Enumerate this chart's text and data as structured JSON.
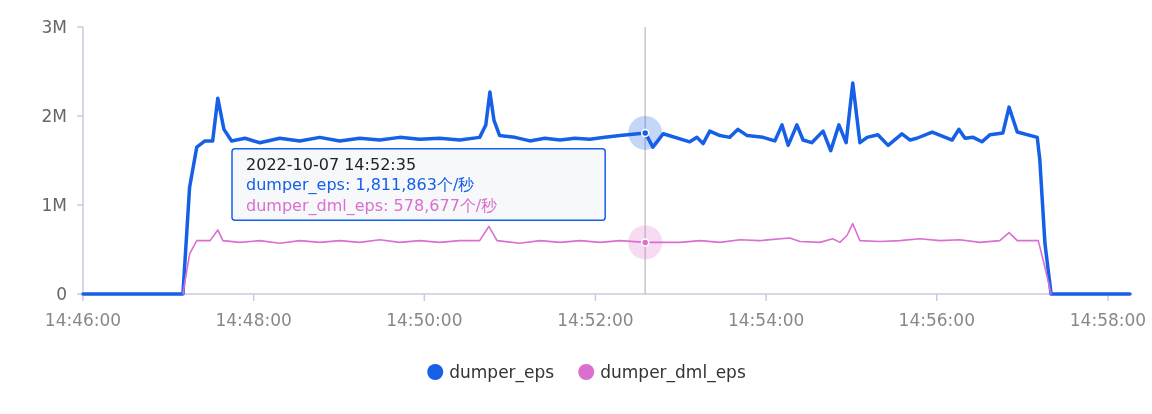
{
  "chart_data": {
    "type": "line",
    "xlim": [
      14.7667,
      14.971
    ],
    "xticks": [
      {
        "value": 14.7667,
        "label": "14:46:00"
      },
      {
        "value": 14.8,
        "label": "14:48:00"
      },
      {
        "value": 14.8333,
        "label": "14:50:00"
      },
      {
        "value": 14.8667,
        "label": "14:52:00"
      },
      {
        "value": 14.9,
        "label": "14:54:00"
      },
      {
        "value": 14.9333,
        "label": "14:56:00"
      },
      {
        "value": 14.9667,
        "label": "14:58:00"
      }
    ],
    "ylim": [
      0,
      3000000
    ],
    "yticks": [
      {
        "value": 0,
        "label": "0"
      },
      {
        "value": 1000000,
        "label": "1M"
      },
      {
        "value": 2000000,
        "label": "2M"
      },
      {
        "value": 3000000,
        "label": "3M"
      }
    ],
    "grid": false,
    "legend": "bottom",
    "marker": "none",
    "line_style": "solid",
    "series": [
      {
        "name": "dumper_eps",
        "color": "#1660e8",
        "x": [
          14.7667,
          14.7862,
          14.7875,
          14.7889,
          14.7905,
          14.792,
          14.793,
          14.7942,
          14.7957,
          14.7983,
          14.8012,
          14.8051,
          14.809,
          14.8129,
          14.8168,
          14.8207,
          14.8246,
          14.8285,
          14.8324,
          14.8363,
          14.8402,
          14.8441,
          14.8453,
          14.8461,
          14.8469,
          14.848,
          14.851,
          14.8539,
          14.8568,
          14.8598,
          14.8627,
          14.8656,
          14.8685,
          14.8715,
          14.8764,
          14.8779,
          14.8799,
          14.8851,
          14.8865,
          14.8877,
          14.889,
          14.891,
          14.8929,
          14.8945,
          14.8963,
          14.8994,
          14.9017,
          14.9031,
          14.9043,
          14.906,
          14.9072,
          14.9089,
          14.9111,
          14.9126,
          14.9142,
          14.9156,
          14.9169,
          14.9183,
          14.9197,
          14.9218,
          14.9238,
          14.9265,
          14.9281,
          14.9294,
          14.9324,
          14.9363,
          14.9376,
          14.9388,
          14.9404,
          14.9421,
          14.9437,
          14.9462,
          14.9474,
          14.949,
          14.9529,
          14.9534,
          14.9544,
          14.9556,
          14.971
        ],
        "values": [
          0,
          0,
          1200000,
          1650000,
          1720000,
          1720000,
          2200000,
          1850000,
          1720000,
          1750000,
          1700000,
          1750000,
          1720000,
          1760000,
          1720000,
          1750000,
          1730000,
          1760000,
          1740000,
          1750000,
          1730000,
          1760000,
          1900000,
          2270000,
          1950000,
          1780000,
          1760000,
          1720000,
          1750000,
          1730000,
          1750000,
          1740000,
          1760000,
          1780000,
          1810000,
          1650000,
          1800000,
          1710000,
          1760000,
          1690000,
          1830000,
          1780000,
          1760000,
          1850000,
          1780000,
          1760000,
          1720000,
          1900000,
          1670000,
          1900000,
          1730000,
          1700000,
          1830000,
          1610000,
          1900000,
          1700000,
          2370000,
          1700000,
          1760000,
          1790000,
          1670000,
          1800000,
          1730000,
          1750000,
          1820000,
          1730000,
          1850000,
          1750000,
          1760000,
          1710000,
          1790000,
          1810000,
          2100000,
          1820000,
          1760000,
          1510000,
          570000,
          0,
          0
        ]
      },
      {
        "name": "dumper_dml_eps",
        "color": "#db6fcf",
        "x": [
          14.7862,
          14.7875,
          14.7889,
          14.7915,
          14.793,
          14.794,
          14.7973,
          14.8012,
          14.8051,
          14.809,
          14.8129,
          14.8168,
          14.8207,
          14.8246,
          14.8285,
          14.8324,
          14.8363,
          14.8402,
          14.8441,
          14.8459,
          14.8475,
          14.8519,
          14.8559,
          14.8598,
          14.8637,
          14.8676,
          14.8715,
          14.8764,
          14.8832,
          14.8871,
          14.891,
          14.8949,
          14.8988,
          14.9046,
          14.9066,
          14.9105,
          14.913,
          14.9144,
          14.9158,
          14.9169,
          14.9183,
          14.9222,
          14.9261,
          14.93,
          14.9339,
          14.9378,
          14.9417,
          14.9456,
          14.9474,
          14.949,
          14.9531,
          14.9544,
          14.9556
        ],
        "values": [
          0,
          450000,
          600000,
          600000,
          720000,
          600000,
          580000,
          600000,
          570000,
          600000,
          580000,
          600000,
          580000,
          610000,
          580000,
          600000,
          580000,
          600000,
          600000,
          760000,
          600000,
          570000,
          600000,
          580000,
          600000,
          580000,
          600000,
          580000,
          580000,
          600000,
          580000,
          610000,
          600000,
          630000,
          590000,
          580000,
          620000,
          580000,
          660000,
          790000,
          600000,
          590000,
          600000,
          620000,
          600000,
          610000,
          580000,
          600000,
          690000,
          600000,
          600000,
          300000,
          0
        ]
      }
    ],
    "ref_lines": [
      {
        "axis": "x",
        "value": 14.8764,
        "color": "#c8c8c8"
      }
    ],
    "annotations": [
      "2022-10-07 14:52:35",
      "dumper_eps: 1,811,863个/秒",
      "dumper_dml_eps: 578,677个/秒"
    ]
  }
}
